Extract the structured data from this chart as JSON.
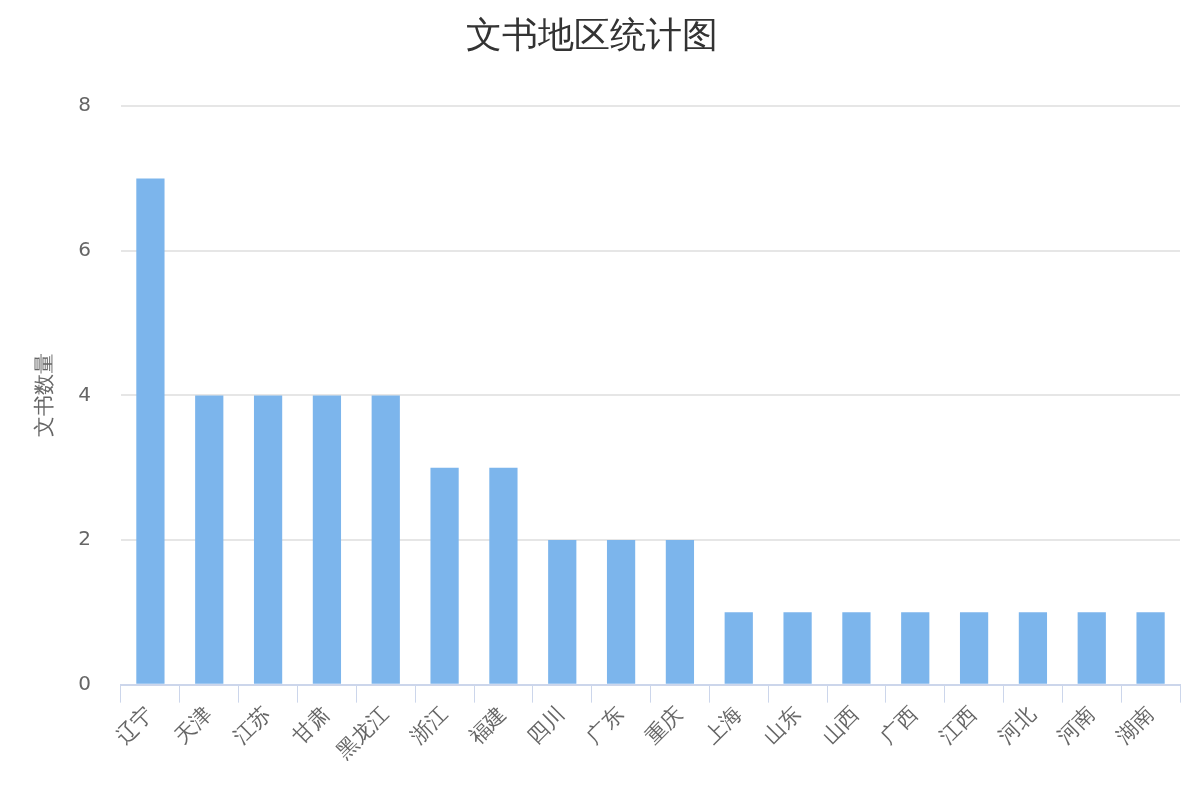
{
  "chart_data": {
    "type": "bar",
    "title": "文书地区统计图",
    "ylabel": "文书数量",
    "categories": [
      "辽宁",
      "天津",
      "江苏",
      "甘肃",
      "黑龙江",
      "浙江",
      "福建",
      "四川",
      "广东",
      "重庆",
      "上海",
      "山东",
      "山西",
      "广西",
      "江西",
      "河北",
      "河南",
      "湖南"
    ],
    "values": [
      7,
      4,
      4,
      4,
      4,
      3,
      3,
      2,
      2,
      2,
      1,
      1,
      1,
      1,
      1,
      1,
      1,
      1
    ],
    "color": "#7cb5ec",
    "ylim": [
      0,
      8
    ],
    "yticks": [
      0,
      2,
      4,
      6,
      8
    ],
    "grid": "y"
  }
}
